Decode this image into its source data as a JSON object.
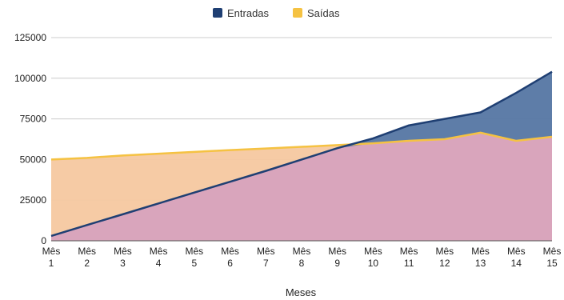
{
  "chart_data": {
    "type": "area",
    "title": "",
    "xlabel": "Meses",
    "ylabel": "",
    "ylim": [
      0,
      125000
    ],
    "yticks": [
      0,
      25000,
      50000,
      75000,
      100000,
      125000
    ],
    "grid": true,
    "legend_position": "top-center",
    "categories": [
      [
        "Mês",
        "1"
      ],
      [
        "Mês",
        "2"
      ],
      [
        "Mês",
        "3"
      ],
      [
        "Mês",
        "4"
      ],
      [
        "Mês",
        "5"
      ],
      [
        "Mês",
        "6"
      ],
      [
        "Mês",
        "7"
      ],
      [
        "Mês",
        "8"
      ],
      [
        "Mês",
        "9"
      ],
      [
        "Mês",
        "10"
      ],
      [
        "Mês",
        "11"
      ],
      [
        "Mês",
        "12"
      ],
      [
        "Mês",
        "13"
      ],
      [
        "Mês",
        "14"
      ],
      [
        "Mês",
        "15"
      ]
    ],
    "series": [
      {
        "name": "Entradas",
        "line_color": "#1f3f73",
        "fill_color": "#5576a3",
        "values": [
          3000,
          9700,
          16300,
          23000,
          29700,
          36300,
          43000,
          50000,
          57000,
          63000,
          71000,
          75000,
          79000,
          91000,
          104000
        ]
      },
      {
        "name": "Saídas",
        "line_color": "#f5c242",
        "fill_color": "#f6c8a0",
        "values": [
          50000,
          51000,
          52500,
          53600,
          54700,
          55800,
          56800,
          57800,
          58900,
          60000,
          61500,
          62500,
          66500,
          61500,
          64000
        ]
      }
    ],
    "overlap_fill_color": "#d9a5bc"
  }
}
